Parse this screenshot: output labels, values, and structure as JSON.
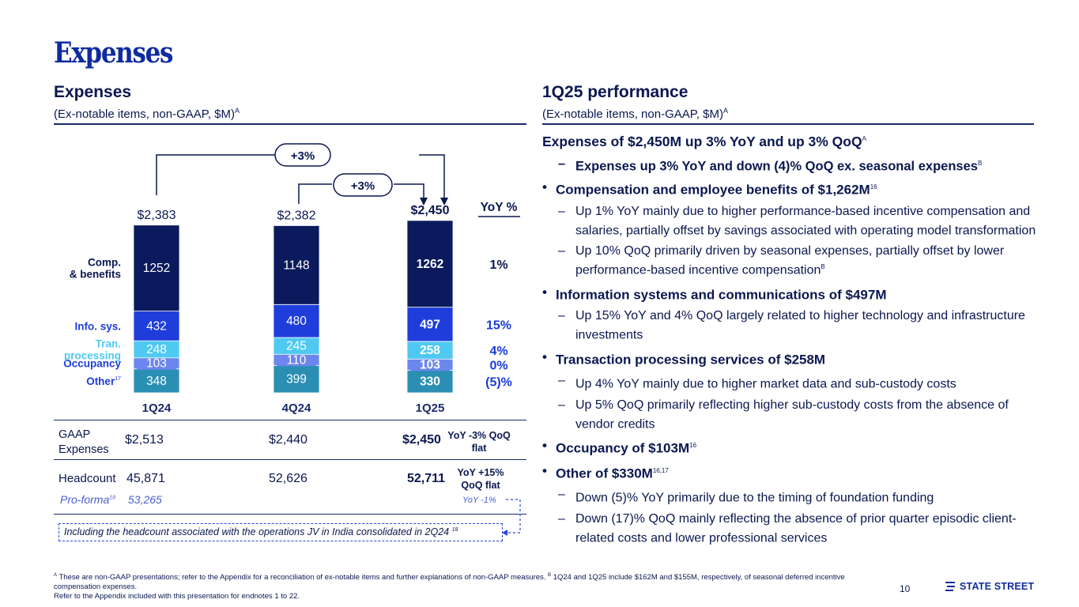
{
  "page_title": "Expenses",
  "left_panel": {
    "title": "Expenses",
    "subtitle": "(Ex-notable items, non-GAAP, $M)",
    "subtitle_sup": "A"
  },
  "right_panel": {
    "title": "1Q25 performance",
    "subtitle": "(Ex-notable items, non-GAAP, $M)",
    "subtitle_sup": "A"
  },
  "chart_data": {
    "type": "bar",
    "stacked": true,
    "categories": [
      "1Q24",
      "4Q24",
      "1Q25"
    ],
    "totals": [
      "$2,383",
      "$2,382",
      "$2,450"
    ],
    "total_values": [
      2383,
      2382,
      2450
    ],
    "series": [
      {
        "name": "Other",
        "name_sup": "17",
        "values": [
          348,
          399,
          330
        ],
        "color": "#2b8fb4",
        "text_color": "#ffffff",
        "yoy": "(5)%",
        "yoy_color": "#1a3ad8"
      },
      {
        "name": "Occupancy",
        "values": [
          103,
          110,
          103
        ],
        "color": "#6b86ec",
        "text_color": "#ffffff",
        "yoy": "0%",
        "yoy_color": "#1a3ad8"
      },
      {
        "name": "Tran. processing",
        "label_lines": [
          "Tran.",
          "processing"
        ],
        "values": [
          248,
          245,
          258
        ],
        "color": "#4fc9f2",
        "text_color": "#ffffff",
        "yoy": "4%",
        "yoy_color": "#1a3ad8"
      },
      {
        "name": "Info. sys.",
        "values": [
          432,
          480,
          497
        ],
        "color": "#1e3ddb",
        "text_color": "#ffffff",
        "yoy": "15%",
        "yoy_color": "#1a3ad8"
      },
      {
        "name": "Comp. & benefits",
        "label_lines": [
          "Comp.",
          "& benefits"
        ],
        "values": [
          1252,
          1148,
          1262
        ],
        "color": "#0b1a5c",
        "text_color": "#ffffff",
        "yoy": "1%",
        "yoy_color": "#0a1850"
      }
    ],
    "yoy_header": "YoY %",
    "growth_callouts": [
      {
        "label": "+3%",
        "from": "1Q24",
        "to": "1Q25"
      },
      {
        "label": "+3%",
        "from": "4Q24",
        "to": "1Q25"
      }
    ],
    "legend_colors": {
      "navy": "#0b1a5c",
      "accent": "#1e3ddb"
    }
  },
  "table": {
    "gaap": {
      "label": "GAAP Expenses",
      "values": [
        "$2,513",
        "$2,440",
        "$2,450"
      ],
      "note": "YoY -3% QoQ flat"
    },
    "headcount": {
      "label": "Headcount",
      "values": [
        "45,871",
        "52,626",
        "52,711"
      ],
      "note": "YoY +15% QoQ flat"
    },
    "proforma": {
      "label": "Pro-forma",
      "label_sup": "18",
      "value": "53,265",
      "note": "YoY -1%"
    },
    "callout": {
      "text": "Including the headcount associated with the operations JV in India consolidated in 2Q24",
      "sup": "18"
    }
  },
  "performance": {
    "lead": {
      "text": "Expenses of $2,450M up 3% YoY and up 3% QoQ",
      "sup": "A"
    },
    "lead_sub": {
      "text": "Expenses up 3% YoY and down (4)% QoQ ex. seasonal expenses",
      "sup": "B"
    },
    "items": [
      {
        "head": "Compensation and employee benefits of $1,262M",
        "sup": "16",
        "subs": [
          {
            "text": "Up 1% YoY mainly due to higher performance-based incentive compensation and salaries, partially offset by savings associated with operating model transformation",
            "sup": ""
          },
          {
            "text": "Up 10% QoQ primarily driven by seasonal expenses, partially offset by lower performance-based incentive compensation",
            "sup": "B"
          }
        ]
      },
      {
        "head": "Information systems and communications of $497M",
        "sup": "",
        "subs": [
          {
            "text": "Up 15% YoY and 4% QoQ largely related to higher technology and infrastructure investments",
            "sup": ""
          }
        ]
      },
      {
        "head": "Transaction processing services of $258M",
        "sup": "",
        "subs": [
          {
            "text": "Up 4% YoY mainly due to higher market data and sub-custody costs",
            "sup": ""
          },
          {
            "text": "Up 5% QoQ primarily reflecting higher sub-custody costs from the absence of vendor credits",
            "sup": ""
          }
        ]
      },
      {
        "head": "Occupancy of $103M",
        "sup": "16",
        "subs": []
      },
      {
        "head": "Other of $330M",
        "sup": "16,17",
        "subs": [
          {
            "text": "Down (5)% YoY primarily due to the timing of foundation funding",
            "sup": ""
          },
          {
            "text": "Down (17)% QoQ mainly reflecting the absence of prior quarter episodic client-related costs and lower professional services",
            "sup": ""
          }
        ]
      }
    ]
  },
  "footnotes": {
    "a_marker": "A",
    "a_text": "These are non-GAAP presentations; refer to the Appendix for a reconciliation of ex-notable items and further explanations of non-GAAP measures.",
    "b_marker": "B",
    "b_text": "1Q24 and 1Q25 include $162M and $155M, respectively, of seasonal deferred incentive compensation expenses.",
    "refer": "Refer to the Appendix included with this presentation for endnotes 1 to 22."
  },
  "page_number": "10",
  "logo_text": "STATE STREET"
}
